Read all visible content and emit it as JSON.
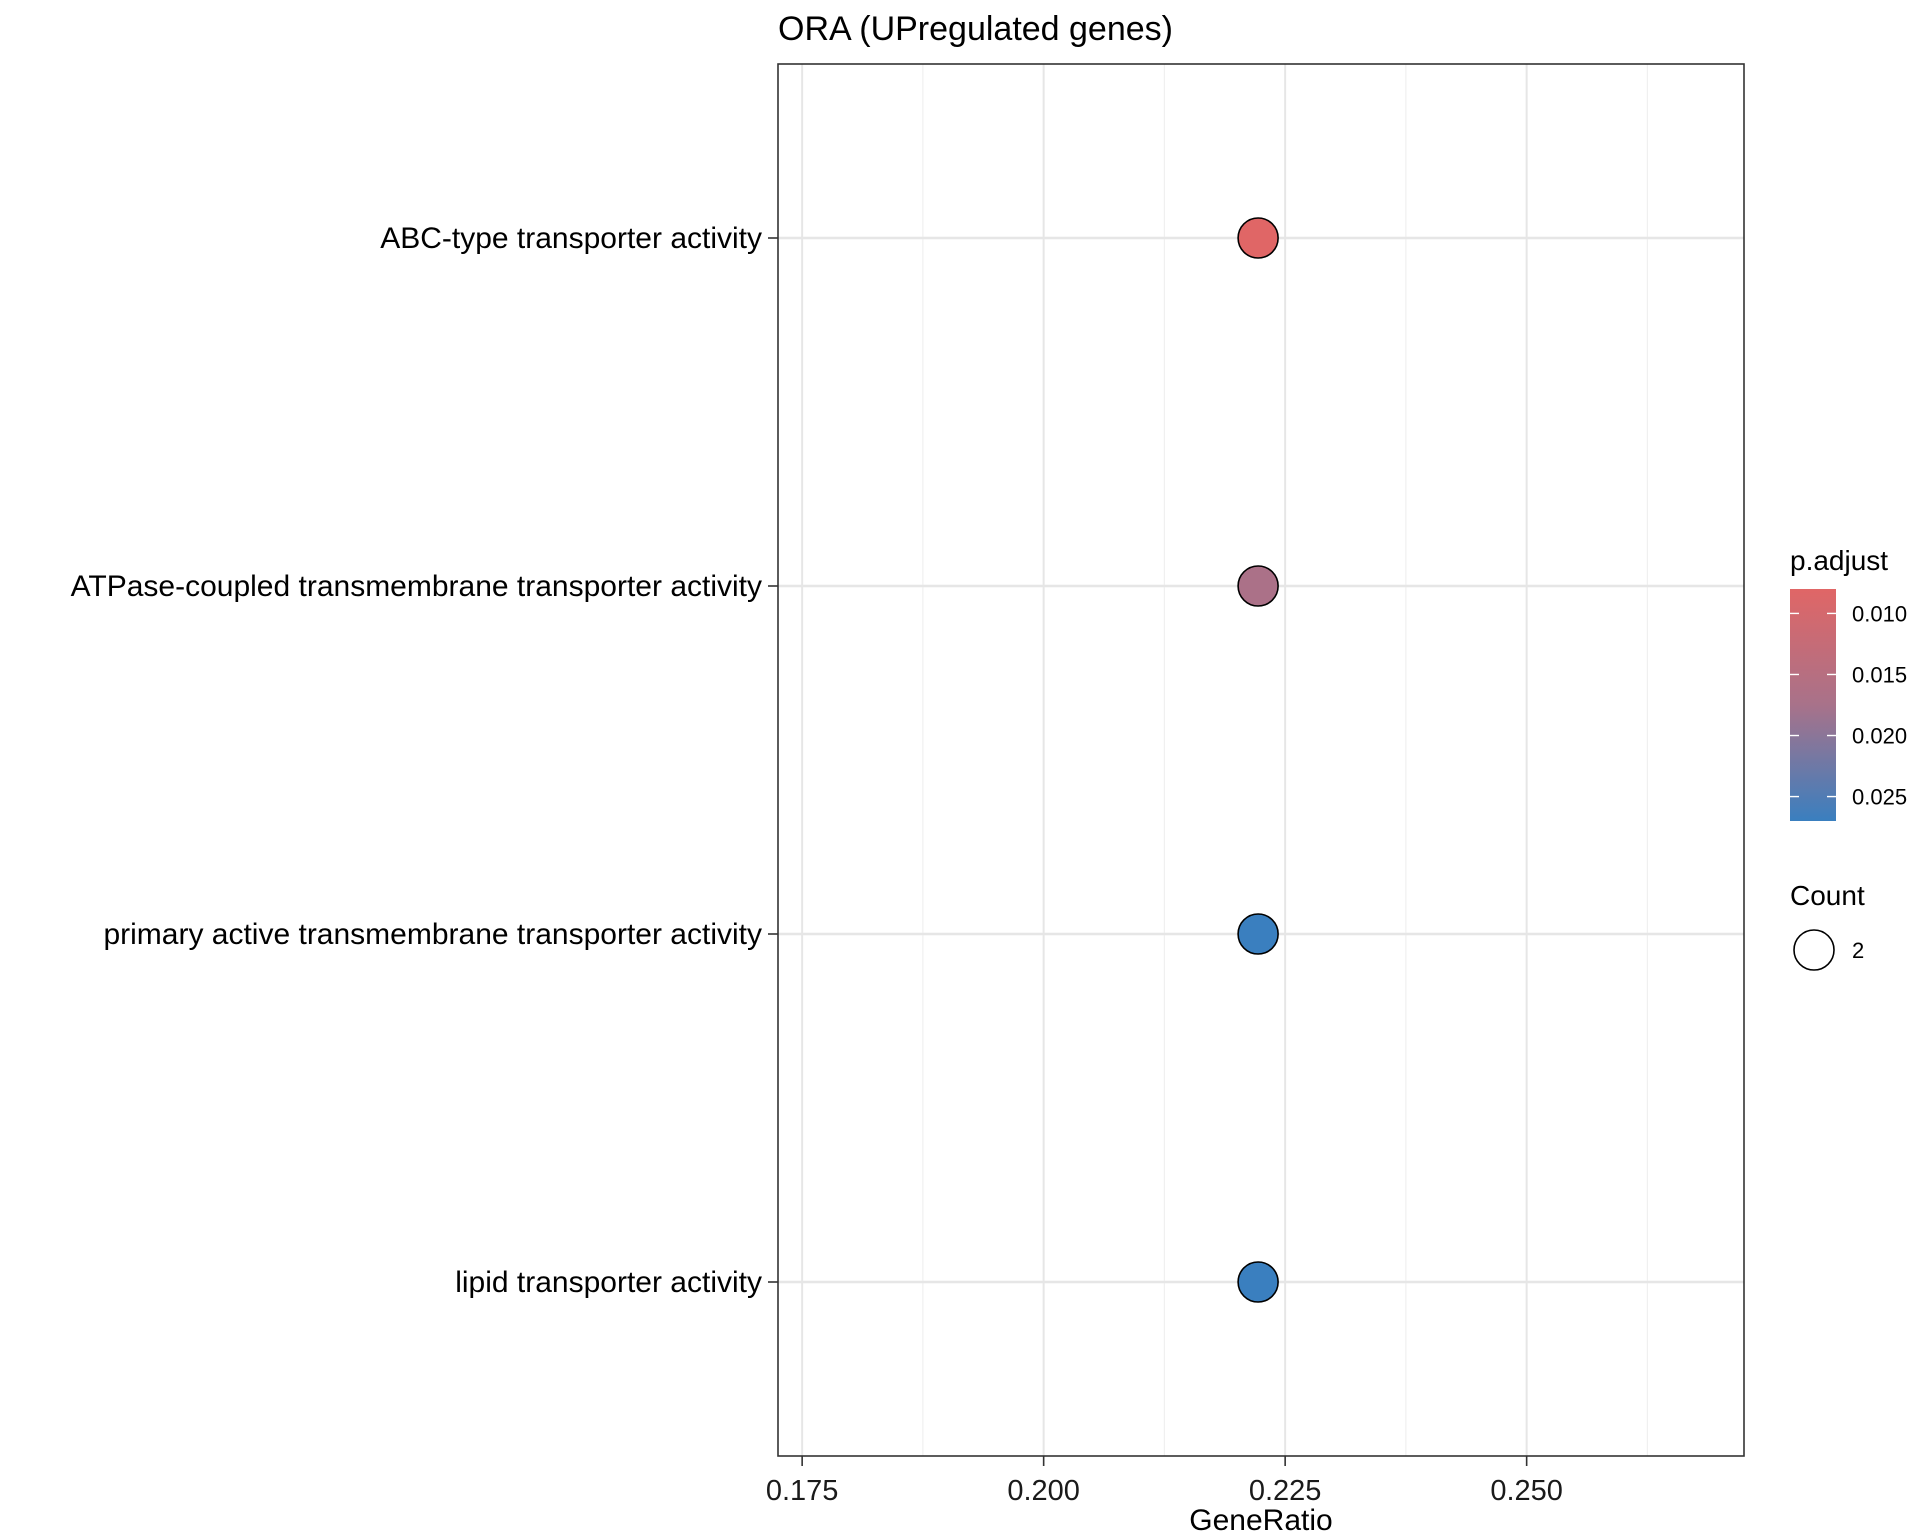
{
  "chart_data": {
    "type": "scatter",
    "title": "ORA (UPregulated genes)",
    "xlabel": "GeneRatio",
    "ylabel": "",
    "xlim": [
      0.1725,
      0.2725
    ],
    "x_ticks": [
      "0.175",
      "0.200",
      "0.225",
      "0.250"
    ],
    "x_tick_values": [
      0.175,
      0.2,
      0.225,
      0.25
    ],
    "categories": [
      "ABC-type transporter activity",
      "ATPase-coupled transmembrane transporter activity",
      "primary active transmembrane transporter activity",
      "lipid transporter activity"
    ],
    "points": [
      {
        "category": "ABC-type transporter activity",
        "x": 0.2222,
        "p_adjust": 0.008,
        "count": 2
      },
      {
        "category": "ATPase-coupled transmembrane transporter activity",
        "x": 0.2222,
        "p_adjust": 0.017,
        "count": 2
      },
      {
        "category": "primary active transmembrane transporter activity",
        "x": 0.2222,
        "p_adjust": 0.027,
        "count": 2
      },
      {
        "category": "lipid transporter activity",
        "x": 0.2222,
        "p_adjust": 0.027,
        "count": 2
      }
    ],
    "grid": true,
    "color_legend": {
      "title": "p.adjust",
      "range": [
        0.008,
        0.027
      ],
      "low_color": "#e06666",
      "high_color": "#3a7fbf",
      "ticks": [
        "0.010",
        "0.015",
        "0.020",
        "0.025"
      ],
      "tick_values": [
        0.01,
        0.015,
        0.02,
        0.025
      ]
    },
    "size_legend": {
      "title": "Count",
      "entries": [
        "2"
      ]
    },
    "legend_position": "right"
  }
}
